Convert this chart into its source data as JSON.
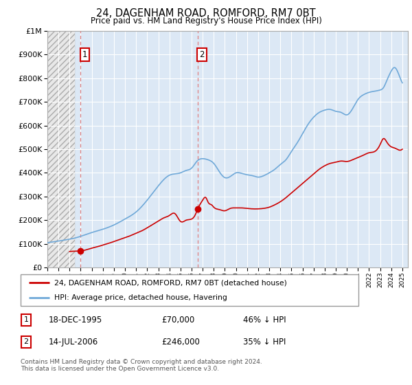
{
  "title": "24, DAGENHAM ROAD, ROMFORD, RM7 0BT",
  "subtitle": "Price paid vs. HM Land Registry's House Price Index (HPI)",
  "legend_line1": "24, DAGENHAM ROAD, ROMFORD, RM7 0BT (detached house)",
  "legend_line2": "HPI: Average price, detached house, Havering",
  "transaction1_date": "18-DEC-1995",
  "transaction1_price": "£70,000",
  "transaction1_hpi": "46% ↓ HPI",
  "transaction2_date": "14-JUL-2006",
  "transaction2_price": "£246,000",
  "transaction2_hpi": "35% ↓ HPI",
  "footer": "Contains HM Land Registry data © Crown copyright and database right 2024.\nThis data is licensed under the Open Government Licence v3.0.",
  "hpi_color": "#6ea8d8",
  "price_paid_color": "#cc0000",
  "bg_hatch_color": "#d8d8d8",
  "bg_blue_color": "#dce8f5",
  "ylim": [
    0,
    1000000
  ],
  "yticks": [
    0,
    100000,
    200000,
    300000,
    400000,
    500000,
    600000,
    700000,
    800000,
    900000,
    1000000
  ],
  "xmin": 1993.0,
  "xmax": 2025.5,
  "t1_x": 1995.96,
  "t1_y": 70000,
  "t2_x": 2006.54,
  "t2_y": 246000
}
